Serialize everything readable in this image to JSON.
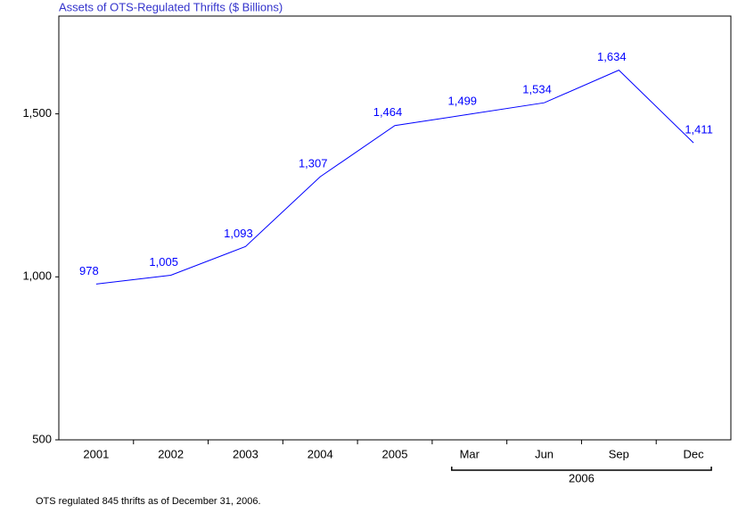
{
  "chart_data": {
    "type": "line",
    "title": "Assets of OTS-Regulated Thrifts ($ Billions)",
    "categories": [
      "2001",
      "2002",
      "2003",
      "2004",
      "2005",
      "Mar",
      "Jun",
      "Sep",
      "Dec"
    ],
    "category_groups": [
      {
        "label": "2006",
        "first": 5,
        "last": 8
      }
    ],
    "values": [
      978,
      1005,
      1093,
      1307,
      1464,
      1499,
      1534,
      1634,
      1411
    ],
    "value_labels": [
      "978",
      "1,005",
      "1,093",
      "1,307",
      "1,464",
      "1,499",
      "1,534",
      "1,634",
      "1,411"
    ],
    "color": "#0000ff",
    "ylim": [
      500,
      1800
    ],
    "yticks": [
      500,
      {
        "value": 1000,
        "label": "1,000"
      },
      {
        "value": 1500,
        "label": "1,500"
      }
    ],
    "footnote": "OTS regulated 845 thrifts as of December 31, 2006."
  }
}
